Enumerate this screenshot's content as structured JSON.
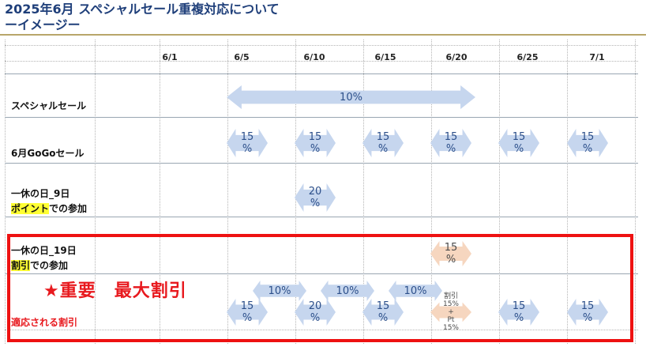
{
  "title": {
    "line1": "2025年6月 スペシャルセール重複対応について",
    "line2": "ーイメージー"
  },
  "timeline": {
    "dates": [
      "6/1",
      "6/5",
      "6/10",
      "6/15",
      "6/20",
      "6/25",
      "7/1"
    ]
  },
  "rows": {
    "special_sale": {
      "label": "スペシャルセール",
      "discount": "10%"
    },
    "gogo_sale": {
      "label": "6月GoGoセール",
      "discounts": [
        "15\n%",
        "15\n%",
        "15\n%",
        "15\n%",
        "15\n%",
        "15\n%"
      ]
    },
    "kyuu_9": {
      "label_line1": "一休の日_9日",
      "label_highlight": "ポイント",
      "label_suffix": "での参加",
      "discount": "20\n%"
    },
    "kyuu_19": {
      "label_line1": "一休の日_19日",
      "label_highlight": "割引",
      "label_suffix": "での参加",
      "discount": "15\n%"
    },
    "applied": {
      "label": "適応される割引",
      "important": "★重要　最大割引",
      "upper_arrows": [
        "10%",
        "10%",
        "10%"
      ],
      "lower_arrows": [
        "15\n%",
        "20\n%",
        "15\n%",
        "割引\n15%\n+\nPt\n15%",
        "15\n%",
        "15\n%"
      ]
    }
  },
  "colors": {
    "title": "#1f3f7a",
    "blue_arrow": "#c6d6ee",
    "peach_arrow": "#f6d6bf",
    "red": "#e8191e",
    "highlight": "#ffff33"
  }
}
